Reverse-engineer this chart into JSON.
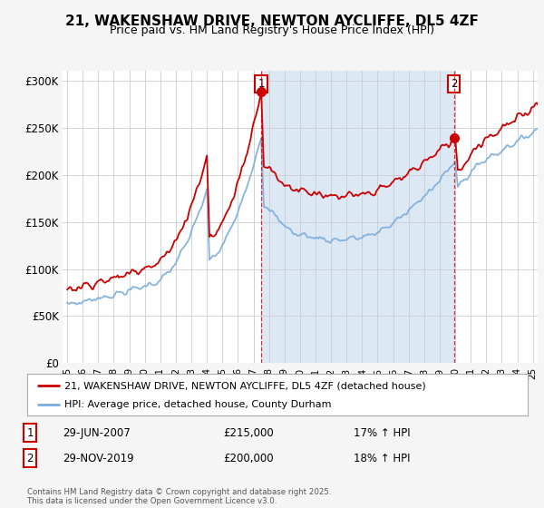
{
  "title": "21, WAKENSHAW DRIVE, NEWTON AYCLIFFE, DL5 4ZF",
  "subtitle": "Price paid vs. HM Land Registry's House Price Index (HPI)",
  "ylabel_ticks": [
    "£0",
    "£50K",
    "£100K",
    "£150K",
    "£200K",
    "£250K",
    "£300K"
  ],
  "ylabel_values": [
    0,
    50000,
    100000,
    150000,
    200000,
    250000,
    300000
  ],
  "ylim": [
    0,
    310000
  ],
  "xlim_start": 1994.7,
  "xlim_end": 2025.3,
  "bg_color": "#f5f5f5",
  "plot_bg": "#ffffff",
  "shaded_bg": "#dde8f5",
  "red_color": "#cc0000",
  "blue_color": "#7aacdc",
  "marker1_date": 2007.49,
  "marker2_date": 2019.92,
  "marker1_label": "1",
  "marker2_label": "2",
  "marker1_value": 215000,
  "marker2_value": 200000,
  "legend_line1": "21, WAKENSHAW DRIVE, NEWTON AYCLIFFE, DL5 4ZF (detached house)",
  "legend_line2": "HPI: Average price, detached house, County Durham",
  "copyright": "Contains HM Land Registry data © Crown copyright and database right 2025.\nThis data is licensed under the Open Government Licence v3.0.",
  "x_ticks": [
    1995,
    1996,
    1997,
    1998,
    1999,
    2000,
    2001,
    2002,
    2003,
    2004,
    2005,
    2006,
    2007,
    2008,
    2009,
    2010,
    2011,
    2012,
    2013,
    2014,
    2015,
    2016,
    2017,
    2018,
    2019,
    2020,
    2021,
    2022,
    2023,
    2024,
    2025
  ]
}
